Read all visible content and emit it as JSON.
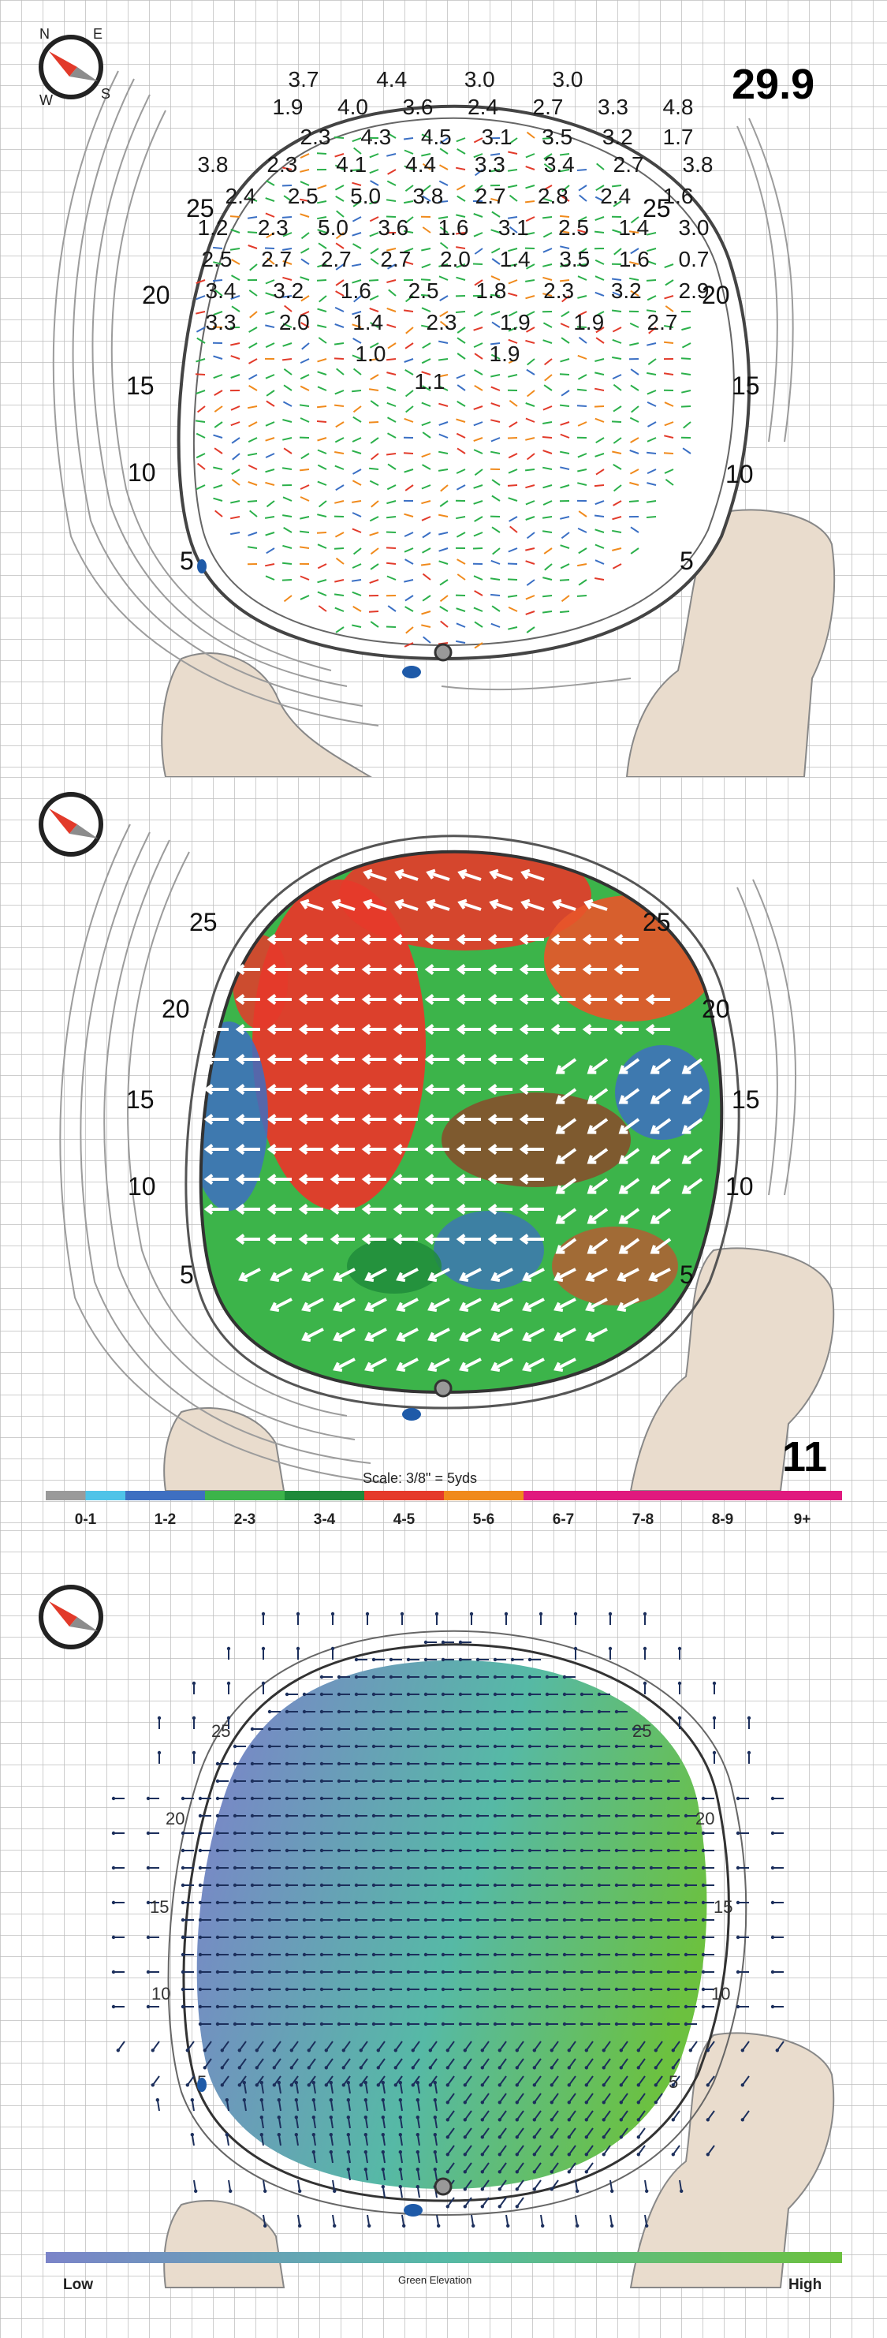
{
  "panels": {
    "slopes": {
      "stimp": "29.9",
      "yardages": [
        "25",
        "20",
        "15",
        "10",
        "5"
      ],
      "compass": {
        "n": "N",
        "e": "E",
        "s": "S",
        "w": "W"
      },
      "numbers": [
        [
          "3.7",
          "4.4",
          "3.0",
          "3.0"
        ],
        [
          "1.9",
          "4.0",
          "3.6",
          "2.4",
          "2.7",
          "3.3",
          "4.8"
        ],
        [
          "2.3",
          "4.3",
          "4.5",
          "3.1",
          "3.5",
          "3.2",
          "1.7"
        ],
        [
          "3.8",
          "2.3",
          "4.1",
          "4.4",
          "3.3",
          "3.4",
          "2.7",
          "3.8"
        ],
        [
          "2.4",
          "2.5",
          "5.0",
          "3.8",
          "2.7",
          "2.8",
          "2.4",
          "1.6"
        ],
        [
          "1.2",
          "2.3",
          "5.0",
          "3.6",
          "1.6",
          "3.1",
          "2.5",
          "1.4",
          "3.0"
        ],
        [
          "2.5",
          "2.7",
          "2.7",
          "2.7",
          "2.0",
          "1.4",
          "3.5",
          "1.6",
          "0.7"
        ],
        [
          "3.4",
          "3.2",
          "1.6",
          "2.5",
          "1.8",
          "2.3",
          "3.2",
          "2.9"
        ],
        [
          "3.3",
          "2.0",
          "1.4",
          "2.3",
          "1.9",
          "1.9",
          "2.7"
        ],
        [
          "1.0",
          "1.9"
        ],
        [
          "1.1"
        ]
      ]
    },
    "heat": {
      "hole": "11",
      "yardages": [
        "25",
        "20",
        "15",
        "10",
        "5"
      ],
      "scale_text": "Scale: 3/8\" = 5yds",
      "legend": [
        {
          "label": "0-1",
          "color": "#9a9a9a",
          "color2": "#4fc3e8"
        },
        {
          "label": "1-2",
          "color": "#3e6fc1",
          "color2": "#3e6fc1"
        },
        {
          "label": "2-3",
          "color": "#3cb44a",
          "color2": "#3cb44a"
        },
        {
          "label": "3-4",
          "color": "#1e8a3a",
          "color2": "#1e8a3a"
        },
        {
          "label": "4-5",
          "color": "#e53a2a",
          "color2": "#e53a2a"
        },
        {
          "label": "5-6",
          "color": "#f08a1c",
          "color2": "#f08a1c"
        },
        {
          "label": "6-7",
          "color": "#e0197e",
          "color2": "#e0197e"
        },
        {
          "label": "7-8",
          "color": "#e0197e",
          "color2": "#e0197e"
        },
        {
          "label": "8-9",
          "color": "#e0197e",
          "color2": "#e0197e"
        },
        {
          "label": "9+",
          "color": "#e0197e",
          "color2": "#e0197e"
        }
      ]
    },
    "elevation": {
      "yardages": [
        "25",
        "20",
        "15",
        "10",
        "5"
      ],
      "low_label": "Low",
      "mid_label": "Green Elevation",
      "high_label": "High",
      "gradient": [
        "#7b84c9",
        "#56b9a6",
        "#6cc13f"
      ]
    }
  }
}
